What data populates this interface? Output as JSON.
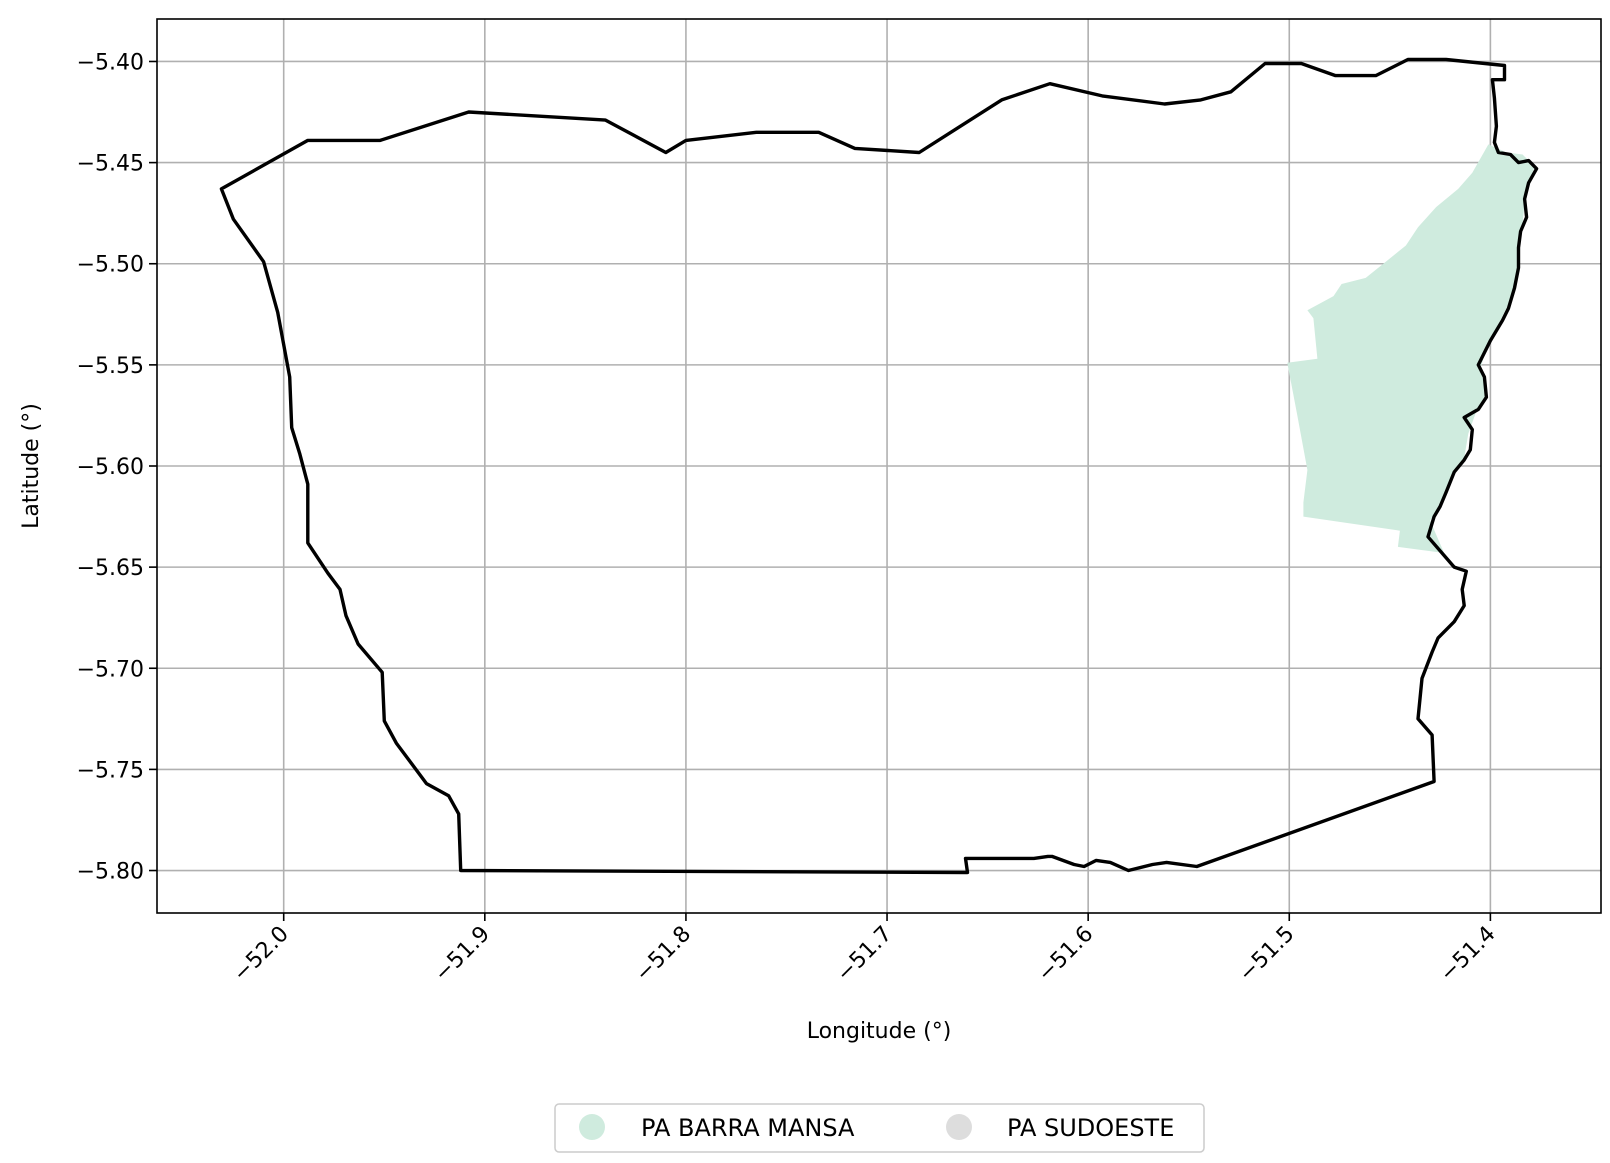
{
  "chart_data": {
    "type": "map",
    "xlabel": "Longitude (°)",
    "ylabel": "Latitude (°)",
    "xlim": [
      -52.063,
      -51.345
    ],
    "ylim": [
      -5.821,
      -5.379
    ],
    "grid": true,
    "legend_placement": "bottom-center",
    "x_ticks": [
      -52.0,
      -51.9,
      -51.8,
      -51.7,
      -51.6,
      -51.5,
      -51.4
    ],
    "x_tick_labels": [
      "−52.0",
      "−51.9",
      "−51.8",
      "−51.7",
      "−51.6",
      "−51.5",
      "−51.4"
    ],
    "y_ticks": [
      -5.4,
      -5.45,
      -5.5,
      -5.55,
      -5.6,
      -5.65,
      -5.7,
      -5.75,
      -5.8
    ],
    "y_tick_labels": [
      "−5.40",
      "−5.45",
      "−5.50",
      "−5.55",
      "−5.60",
      "−5.65",
      "−5.70",
      "−5.75",
      "−5.80"
    ],
    "legend": [
      {
        "label": "PA BARRA MANSA",
        "color": "#cfebde"
      },
      {
        "label": "PA SUDOESTE",
        "color": "#dddddd"
      }
    ],
    "boundary": {
      "color": "#000000",
      "points": [
        [
          -52.031,
          -5.463
        ],
        [
          -51.988,
          -5.439
        ],
        [
          -51.952,
          -5.439
        ],
        [
          -51.908,
          -5.425
        ],
        [
          -51.84,
          -5.429
        ],
        [
          -51.81,
          -5.445
        ],
        [
          -51.8,
          -5.439
        ],
        [
          -51.765,
          -5.435
        ],
        [
          -51.734,
          -5.435
        ],
        [
          -51.716,
          -5.443
        ],
        [
          -51.684,
          -5.445
        ],
        [
          -51.643,
          -5.419
        ],
        [
          -51.619,
          -5.411
        ],
        [
          -51.593,
          -5.417
        ],
        [
          -51.562,
          -5.421
        ],
        [
          -51.544,
          -5.419
        ],
        [
          -51.529,
          -5.415
        ],
        [
          -51.512,
          -5.401
        ],
        [
          -51.494,
          -5.401
        ],
        [
          -51.477,
          -5.407
        ],
        [
          -51.457,
          -5.407
        ],
        [
          -51.441,
          -5.399
        ],
        [
          -51.422,
          -5.399
        ],
        [
          -51.393,
          -5.402
        ],
        [
          -51.393,
          -5.409
        ],
        [
          -51.399,
          -5.409
        ],
        [
          -51.398,
          -5.418
        ],
        [
          -51.397,
          -5.432
        ],
        [
          -51.398,
          -5.44
        ],
        [
          -51.396,
          -5.445
        ],
        [
          -51.39,
          -5.446
        ],
        [
          -51.386,
          -5.45
        ],
        [
          -51.381,
          -5.449
        ],
        [
          -51.377,
          -5.453
        ],
        [
          -51.381,
          -5.46
        ],
        [
          -51.383,
          -5.468
        ],
        [
          -51.382,
          -5.477
        ],
        [
          -51.385,
          -5.484
        ],
        [
          -51.386,
          -5.492
        ],
        [
          -51.386,
          -5.502
        ],
        [
          -51.388,
          -5.512
        ],
        [
          -51.391,
          -5.522
        ],
        [
          -51.394,
          -5.528
        ],
        [
          -51.4,
          -5.538
        ],
        [
          -51.406,
          -5.55
        ],
        [
          -51.403,
          -5.556
        ],
        [
          -51.402,
          -5.566
        ],
        [
          -51.406,
          -5.572
        ],
        [
          -51.413,
          -5.576
        ],
        [
          -51.409,
          -5.582
        ],
        [
          -51.41,
          -5.592
        ],
        [
          -51.413,
          -5.597
        ],
        [
          -51.418,
          -5.603
        ],
        [
          -51.422,
          -5.613
        ],
        [
          -51.425,
          -5.62
        ],
        [
          -51.428,
          -5.625
        ],
        [
          -51.431,
          -5.635
        ],
        [
          -51.418,
          -5.65
        ],
        [
          -51.412,
          -5.652
        ],
        [
          -51.414,
          -5.661
        ],
        [
          -51.413,
          -5.669
        ],
        [
          -51.418,
          -5.677
        ],
        [
          -51.426,
          -5.685
        ],
        [
          -51.429,
          -5.692
        ],
        [
          -51.434,
          -5.705
        ],
        [
          -51.436,
          -5.725
        ],
        [
          -51.429,
          -5.733
        ],
        [
          -51.428,
          -5.756
        ],
        [
          -51.546,
          -5.798
        ],
        [
          -51.561,
          -5.796
        ],
        [
          -51.568,
          -5.797
        ],
        [
          -51.58,
          -5.8
        ],
        [
          -51.589,
          -5.796
        ],
        [
          -51.596,
          -5.795
        ],
        [
          -51.602,
          -5.798
        ],
        [
          -51.607,
          -5.797
        ],
        [
          -51.618,
          -5.793
        ],
        [
          -51.62,
          -5.793
        ],
        [
          -51.627,
          -5.794
        ],
        [
          -51.639,
          -5.794
        ],
        [
          -51.661,
          -5.794
        ],
        [
          -51.66,
          -5.801
        ],
        [
          -51.912,
          -5.8
        ],
        [
          -51.913,
          -5.772
        ],
        [
          -51.918,
          -5.763
        ],
        [
          -51.929,
          -5.757
        ],
        [
          -51.944,
          -5.737
        ],
        [
          -51.95,
          -5.726
        ],
        [
          -51.951,
          -5.702
        ],
        [
          -51.963,
          -5.688
        ],
        [
          -51.969,
          -5.674
        ],
        [
          -51.972,
          -5.661
        ],
        [
          -51.978,
          -5.653
        ],
        [
          -51.988,
          -5.638
        ],
        [
          -51.988,
          -5.609
        ],
        [
          -51.992,
          -5.594
        ],
        [
          -51.996,
          -5.581
        ],
        [
          -51.997,
          -5.556
        ],
        [
          -52.003,
          -5.524
        ],
        [
          -52.01,
          -5.499
        ],
        [
          -52.025,
          -5.478
        ],
        [
          -52.031,
          -5.463
        ]
      ]
    },
    "areas": [
      {
        "label": "PA BARRA MANSA",
        "color": "#cfebde",
        "points": [
          [
            -51.401,
            -5.441
          ],
          [
            -51.392,
            -5.445
          ],
          [
            -51.384,
            -5.446
          ],
          [
            -51.378,
            -5.452
          ],
          [
            -51.381,
            -5.46
          ],
          [
            -51.383,
            -5.47
          ],
          [
            -51.384,
            -5.48
          ],
          [
            -51.386,
            -5.492
          ],
          [
            -51.387,
            -5.505
          ],
          [
            -51.39,
            -5.518
          ],
          [
            -51.396,
            -5.53
          ],
          [
            -51.402,
            -5.542
          ],
          [
            -51.405,
            -5.552
          ],
          [
            -51.402,
            -5.564
          ],
          [
            -51.407,
            -5.573
          ],
          [
            -51.411,
            -5.584
          ],
          [
            -51.413,
            -5.596
          ],
          [
            -51.419,
            -5.606
          ],
          [
            -51.424,
            -5.617
          ],
          [
            -51.43,
            -5.627
          ],
          [
            -51.423,
            -5.643
          ],
          [
            -51.446,
            -5.64
          ],
          [
            -51.445,
            -5.632
          ],
          [
            -51.493,
            -5.625
          ],
          [
            -51.493,
            -5.618
          ],
          [
            -51.491,
            -5.602
          ],
          [
            -51.496,
            -5.575
          ],
          [
            -51.501,
            -5.549
          ],
          [
            -51.486,
            -5.547
          ],
          [
            -51.488,
            -5.527
          ],
          [
            -51.491,
            -5.523
          ],
          [
            -51.478,
            -5.516
          ],
          [
            -51.474,
            -5.51
          ],
          [
            -51.462,
            -5.507
          ],
          [
            -51.452,
            -5.499
          ],
          [
            -51.442,
            -5.491
          ],
          [
            -51.436,
            -5.482
          ],
          [
            -51.427,
            -5.472
          ],
          [
            -51.416,
            -5.463
          ],
          [
            -51.409,
            -5.455
          ]
        ]
      }
    ]
  }
}
